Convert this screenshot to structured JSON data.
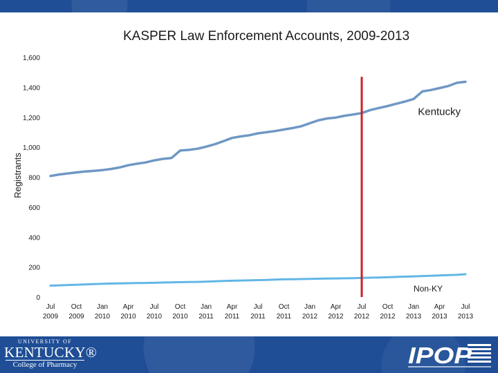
{
  "footer": {
    "uk_line1": "UNIVERSITY OF",
    "uk_line2": "KENTUCKY®",
    "uk_line3": "College of Pharmacy",
    "ipop_logo_text": "IPOP"
  },
  "colors": {
    "band": "#1f4e96",
    "kentucky_line": "#6f97c4",
    "nonky_line": "#62b6e6",
    "marker_line": "#cc1f25"
  },
  "chart_data": {
    "type": "line",
    "title": "KASPER Law Enforcement Accounts, 2009-2013",
    "xlabel": "",
    "ylabel": "Registrants",
    "ylim": [
      0,
      1600
    ],
    "yticks": [
      "0",
      "200",
      "400",
      "600",
      "800",
      "1,000",
      "1,200",
      "1,400",
      "1,600"
    ],
    "ytick_values": [
      0,
      200,
      400,
      600,
      800,
      1000,
      1200,
      1400,
      1600
    ],
    "xticks": [
      {
        "month": "Jul",
        "year": "2009"
      },
      {
        "month": "Oct",
        "year": "2009"
      },
      {
        "month": "Jan",
        "year": "2010"
      },
      {
        "month": "Apr",
        "year": "2010"
      },
      {
        "month": "Jul",
        "year": "2010"
      },
      {
        "month": "Oct",
        "year": "2010"
      },
      {
        "month": "Jan",
        "year": "2011"
      },
      {
        "month": "Apr",
        "year": "2011"
      },
      {
        "month": "Jul",
        "year": "2011"
      },
      {
        "month": "Oct",
        "year": "2011"
      },
      {
        "month": "Jan",
        "year": "2012"
      },
      {
        "month": "Apr",
        "year": "2012"
      },
      {
        "month": "Jul",
        "year": "2012"
      },
      {
        "month": "Oct",
        "year": "2012"
      },
      {
        "month": "Jan",
        "year": "2013"
      },
      {
        "month": "Apr",
        "year": "2013"
      },
      {
        "month": "Jul",
        "year": "2013"
      }
    ],
    "x": [
      "Jul 2009",
      "Aug 2009",
      "Sep 2009",
      "Oct 2009",
      "Nov 2009",
      "Dec 2009",
      "Jan 2010",
      "Feb 2010",
      "Mar 2010",
      "Apr 2010",
      "May 2010",
      "Jun 2010",
      "Jul 2010",
      "Aug 2010",
      "Sep 2010",
      "Oct 2010",
      "Nov 2010",
      "Dec 2010",
      "Jan 2011",
      "Feb 2011",
      "Mar 2011",
      "Apr 2011",
      "May 2011",
      "Jun 2011",
      "Jul 2011",
      "Aug 2011",
      "Sep 2011",
      "Oct 2011",
      "Nov 2011",
      "Dec 2011",
      "Jan 2012",
      "Feb 2012",
      "Mar 2012",
      "Apr 2012",
      "May 2012",
      "Jun 2012",
      "Jul 2012",
      "Aug 2012",
      "Sep 2012",
      "Oct 2012",
      "Nov 2012",
      "Dec 2012",
      "Jan 2013",
      "Feb 2013",
      "Mar 2013",
      "Apr 2013",
      "May 2013",
      "Jun 2013",
      "Jul 2013"
    ],
    "series": [
      {
        "name": "Kentucky",
        "values": [
          808,
          818,
          825,
          832,
          838,
          842,
          847,
          855,
          865,
          880,
          890,
          898,
          912,
          922,
          928,
          978,
          982,
          990,
          1004,
          1020,
          1040,
          1062,
          1072,
          1080,
          1093,
          1100,
          1108,
          1118,
          1128,
          1140,
          1160,
          1180,
          1192,
          1198,
          1210,
          1218,
          1228,
          1248,
          1262,
          1275,
          1290,
          1305,
          1322,
          1372,
          1382,
          1395,
          1408,
          1430,
          1437
        ]
      },
      {
        "name": "Non-KY",
        "values": [
          76,
          78,
          80,
          82,
          84,
          86,
          88,
          90,
          91,
          92,
          93,
          94,
          95,
          97,
          98,
          99,
          100,
          101,
          103,
          105,
          107,
          109,
          110,
          111,
          113,
          114,
          116,
          118,
          119,
          120,
          121,
          122,
          123,
          124,
          125,
          126,
          128,
          129,
          130,
          132,
          134,
          136,
          138,
          140,
          142,
          144,
          146,
          148,
          152
        ]
      }
    ],
    "marker": {
      "x": "Jul 2012",
      "label": ""
    },
    "annotations": [
      {
        "text": "Kentucky",
        "series": "Kentucky"
      },
      {
        "text": "Non-KY",
        "series": "Non-KY"
      }
    ],
    "grid": false,
    "legend": "none"
  }
}
